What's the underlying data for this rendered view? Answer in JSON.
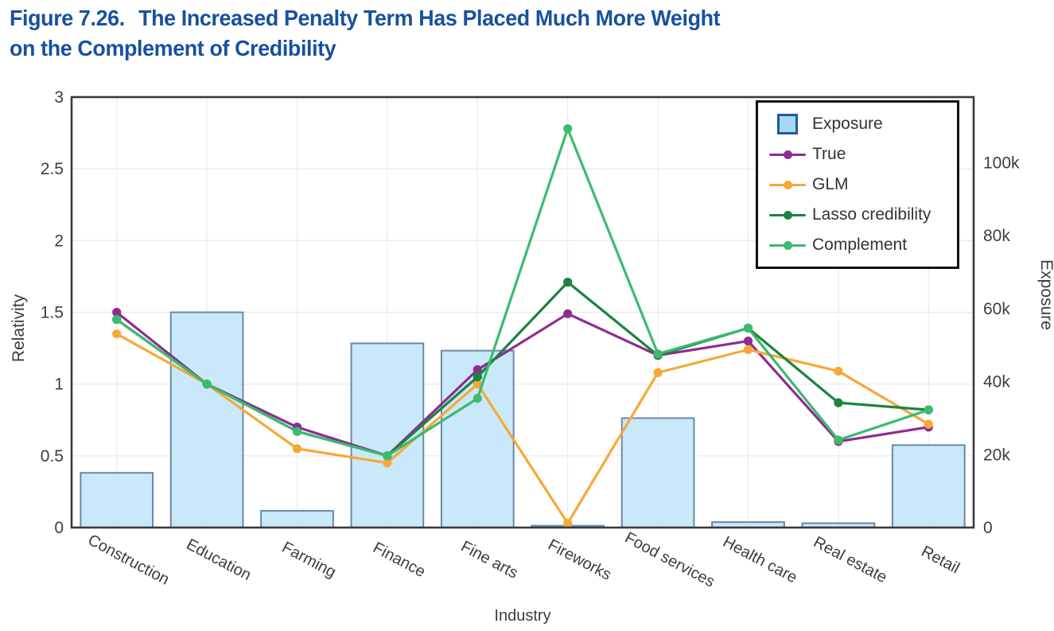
{
  "figure": {
    "label": "Figure 7.26.",
    "title_line1": "The Increased Penalty Term Has Placed Much More Weight",
    "title_line2": "on the Complement of Credibility",
    "title_color": "#17519e"
  },
  "chart_data": {
    "type": "combo-bar-line",
    "categories": [
      "Construction",
      "Education",
      "Farming",
      "Finance",
      "Fine arts",
      "Fireworks",
      "Food services",
      "Health care",
      "Real estate",
      "Retail"
    ],
    "xlabel": "Industry",
    "left_axis": {
      "label": "Relativity",
      "min": 0,
      "max": 3,
      "tick_values": [
        0,
        0.5,
        1,
        1.5,
        2,
        2.5,
        3
      ],
      "tick_labels": [
        "0",
        "0.5",
        "1",
        "1.5",
        "2",
        "2.5",
        "3"
      ]
    },
    "right_axis": {
      "label": "Exposure",
      "min": 0,
      "max": 118000,
      "tick_values": [
        0,
        20000,
        40000,
        60000,
        80000,
        100000
      ],
      "tick_labels": [
        "0",
        "20k",
        "40k",
        "60k",
        "80k",
        "100k"
      ]
    },
    "bars": {
      "name": "Exposure",
      "axis": "right",
      "values": [
        15000,
        59000,
        4600,
        50500,
        48500,
        500,
        30000,
        1500,
        1200,
        22600
      ]
    },
    "line_series": [
      {
        "name": "True",
        "color": "#8e2d90",
        "values": [
          1.5,
          1.0,
          0.7,
          0.5,
          1.1,
          1.49,
          1.2,
          1.3,
          0.6,
          0.7
        ]
      },
      {
        "name": "GLM",
        "color": "#f7a838",
        "values": [
          1.35,
          1.0,
          0.55,
          0.45,
          1.0,
          0.03,
          1.08,
          1.24,
          1.09,
          0.72
        ]
      },
      {
        "name": "Lasso credibility",
        "color": "#1c833f",
        "values": [
          1.45,
          1.0,
          0.67,
          0.5,
          1.05,
          1.71,
          1.2,
          1.39,
          0.87,
          0.82
        ]
      },
      {
        "name": "Complement",
        "color": "#3cba6e",
        "values": [
          1.45,
          1.0,
          0.67,
          0.5,
          0.9,
          2.78,
          1.21,
          1.39,
          0.61,
          0.82
        ]
      }
    ],
    "legend_position": "top-right",
    "grid": true,
    "colors": {
      "bar_fill": "#bfe5f9",
      "bar_stroke": "#6a87ab",
      "legend_square_fill": "#a5d8f2",
      "legend_square_stroke": "#1f5c99",
      "plot_border": "#3a3a3a",
      "gridline": "#ececec",
      "tick_text": "#3d3d3d"
    }
  }
}
